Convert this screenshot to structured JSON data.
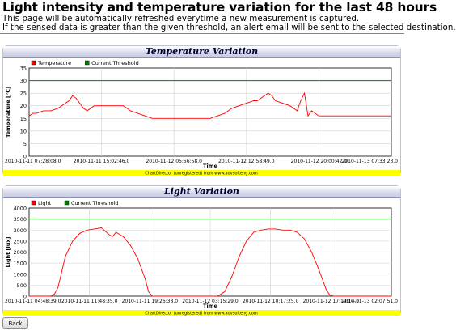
{
  "page": {
    "title": "Light intensity and temperature variation for the last 48 hours",
    "line1": "This page will be automatically refreshed everytime a new measurement is captured.",
    "line2": "If the sensed data is greater than the given threshold, an alert email will be sent to the selected destination.",
    "back_label": "Back"
  },
  "colors": {
    "series": "#ff0000",
    "threshold": "#008000",
    "footer_band": "#ffff00",
    "grid": "#d0d0d0"
  },
  "chart_data": [
    {
      "type": "line",
      "title": "Temperature Variation",
      "legend": [
        "Temperature",
        "Current Threshold"
      ],
      "legend_placement": "top-left",
      "xlabel": "Time",
      "ylabel": "Temperature [°C]",
      "ylim": [
        0,
        35
      ],
      "yticks": [
        "0",
        "5",
        "10",
        "15",
        "20",
        "25",
        "30",
        "35"
      ],
      "xticks": [
        "2010-11-11 07:28:08.0",
        "2010-11-11 15:02:46.0",
        "2010-11-12 05:56:58.0",
        "2010-11-12 12:58:49.0",
        "2010-11-12 20:00:42.0",
        "2010-11-13 07:33:23.0"
      ],
      "footer": "ChartDirector (unregistered) from www.advsofteng.com",
      "threshold": 30,
      "grid": true,
      "series": [
        {
          "name": "Temperature",
          "x": [
            0,
            1,
            2,
            4,
            6,
            8,
            10,
            11,
            12,
            13,
            14,
            15,
            16,
            18,
            20,
            22,
            24,
            26,
            27,
            28,
            30,
            32,
            34,
            36,
            40,
            45,
            50,
            52,
            54,
            55,
            56,
            58,
            60,
            62,
            63,
            64,
            65,
            66,
            67,
            68,
            70,
            72,
            73,
            74,
            75,
            76,
            77,
            78,
            79,
            80,
            82,
            84,
            86,
            88,
            90,
            92,
            95,
            100
          ],
          "y": [
            16,
            17,
            17,
            18,
            18,
            19,
            21,
            22,
            24,
            23,
            21,
            19,
            18,
            20,
            20,
            20,
            20,
            20,
            19,
            18,
            17,
            16,
            15,
            15,
            15,
            15,
            15,
            16,
            17,
            18,
            19,
            20,
            21,
            22,
            22,
            23,
            24,
            25,
            24,
            22,
            21,
            20,
            19,
            18,
            22,
            25,
            16,
            18,
            17,
            16,
            16,
            16,
            16,
            16,
            16,
            16,
            16,
            16
          ]
        }
      ]
    },
    {
      "type": "line",
      "title": "Light Variation",
      "legend": [
        "Light",
        "Current Threshold"
      ],
      "legend_placement": "top-left",
      "xlabel": "Time",
      "ylabel": "Light [lux]",
      "ylim": [
        0,
        4000
      ],
      "yticks": [
        "0",
        "500",
        "1000",
        "1500",
        "2000",
        "2500",
        "3000",
        "3500",
        "4000"
      ],
      "xticks": [
        "2010-11-11 04:48:39.0",
        "2010-11-11 11:48:35.0",
        "2010-11-11 19:26:38.0",
        "2010-11-12 03:15:29.0",
        "2010-11-12 10:17:25.0",
        "2010-11-12 17:19:14.0",
        "2010-11-13 02:07:51.0"
      ],
      "footer": "ChartDirector (unregistered) from www.advsofteng.com",
      "threshold": 3500,
      "grid": true,
      "series": [
        {
          "name": "Light",
          "x": [
            0,
            6,
            7,
            8,
            9,
            10,
            12,
            14,
            16,
            18,
            20,
            22,
            23,
            24,
            25,
            26,
            28,
            30,
            32,
            33,
            34,
            36,
            38,
            40,
            52,
            54,
            56,
            58,
            60,
            62,
            64,
            66,
            68,
            70,
            72,
            74,
            76,
            78,
            80,
            82,
            83,
            84,
            85,
            86,
            100
          ],
          "y": [
            0,
            0,
            100,
            400,
            1100,
            1800,
            2500,
            2850,
            3000,
            3050,
            3100,
            2800,
            2700,
            2900,
            2800,
            2700,
            2300,
            1700,
            800,
            200,
            0,
            0,
            0,
            0,
            0,
            200,
            900,
            1800,
            2500,
            2900,
            3000,
            3050,
            3050,
            3000,
            3000,
            2900,
            2600,
            2000,
            1200,
            300,
            50,
            0,
            0,
            0,
            0
          ]
        }
      ]
    }
  ]
}
